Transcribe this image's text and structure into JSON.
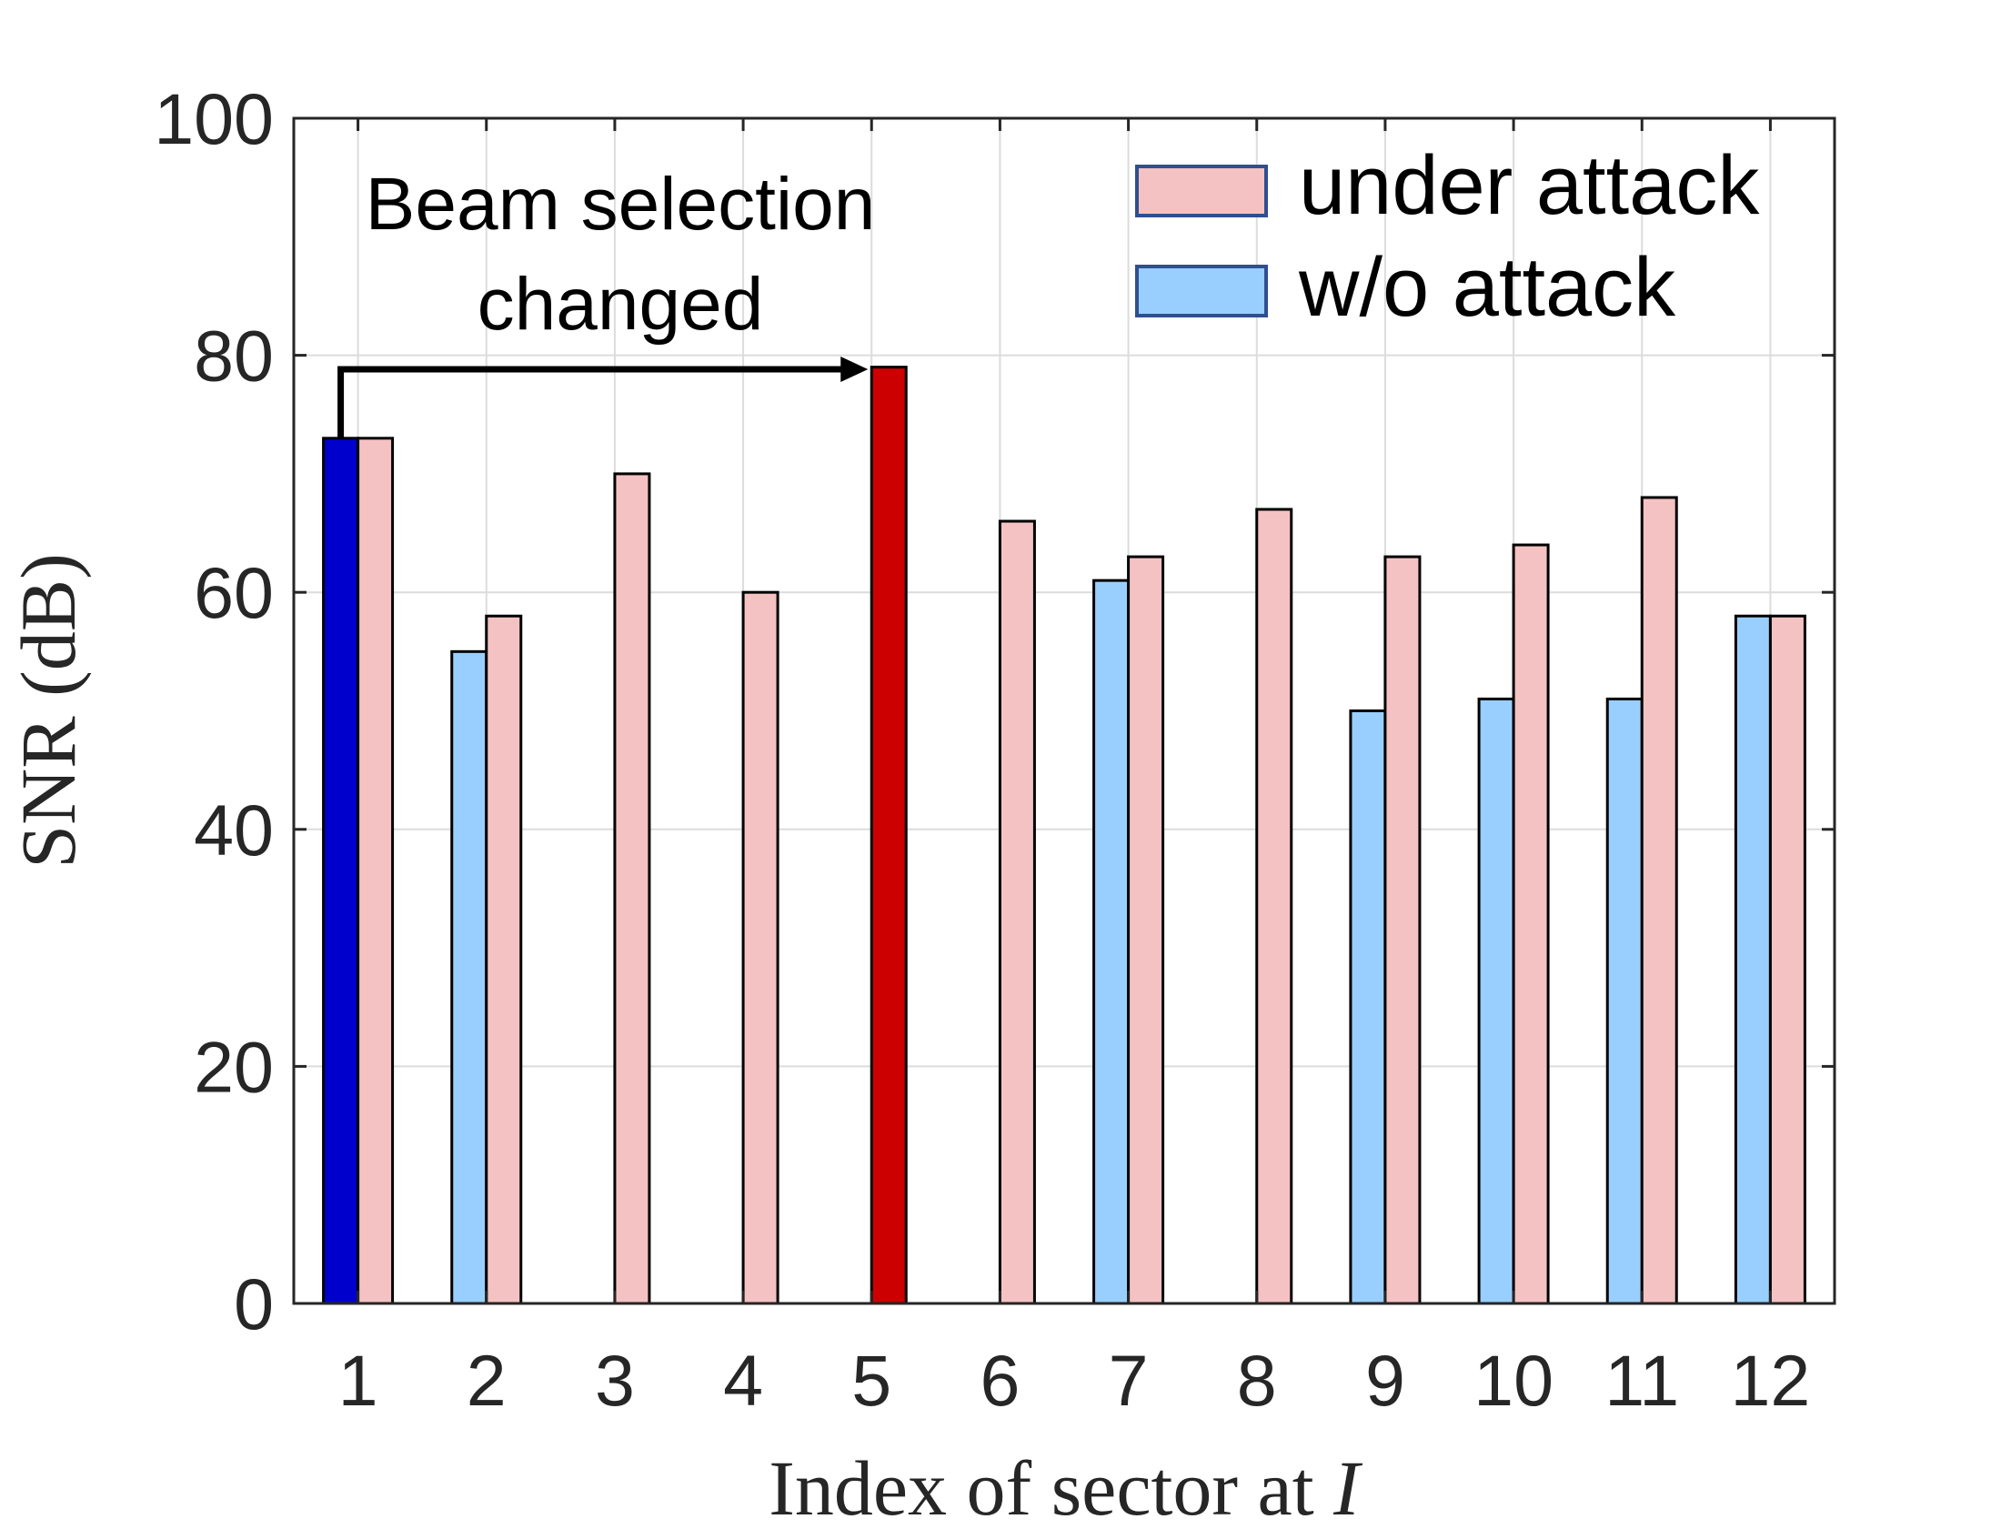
{
  "chart_data": {
    "type": "bar",
    "xlabel_prefix": "Index of sector at ",
    "xlabel_var": "I",
    "ylabel": "SNR (dB)",
    "ylim": [
      0,
      100
    ],
    "yticks": [
      0,
      20,
      40,
      60,
      80,
      100
    ],
    "categories": [
      "1",
      "2",
      "3",
      "4",
      "5",
      "6",
      "7",
      "8",
      "9",
      "10",
      "11",
      "12"
    ],
    "grid": true,
    "legend_position": "top-right",
    "series": [
      {
        "name": "w/o attack",
        "color": "#99CFFF",
        "values": [
          73,
          55,
          null,
          null,
          null,
          null,
          61,
          null,
          50,
          51,
          51,
          58
        ]
      },
      {
        "name": "under attack",
        "color": "#F4C2C2",
        "values": [
          73,
          58,
          70,
          60,
          79,
          66,
          63,
          67,
          63,
          64,
          68,
          58
        ]
      }
    ],
    "highlights": [
      {
        "series": "w/o attack",
        "category": "1",
        "color": "#0000CC"
      },
      {
        "series": "under attack",
        "category": "5",
        "color": "#CC0000"
      }
    ],
    "annotation": {
      "lines": [
        "Beam selection",
        "changed"
      ],
      "from_category": "1",
      "to_category": "5"
    }
  }
}
